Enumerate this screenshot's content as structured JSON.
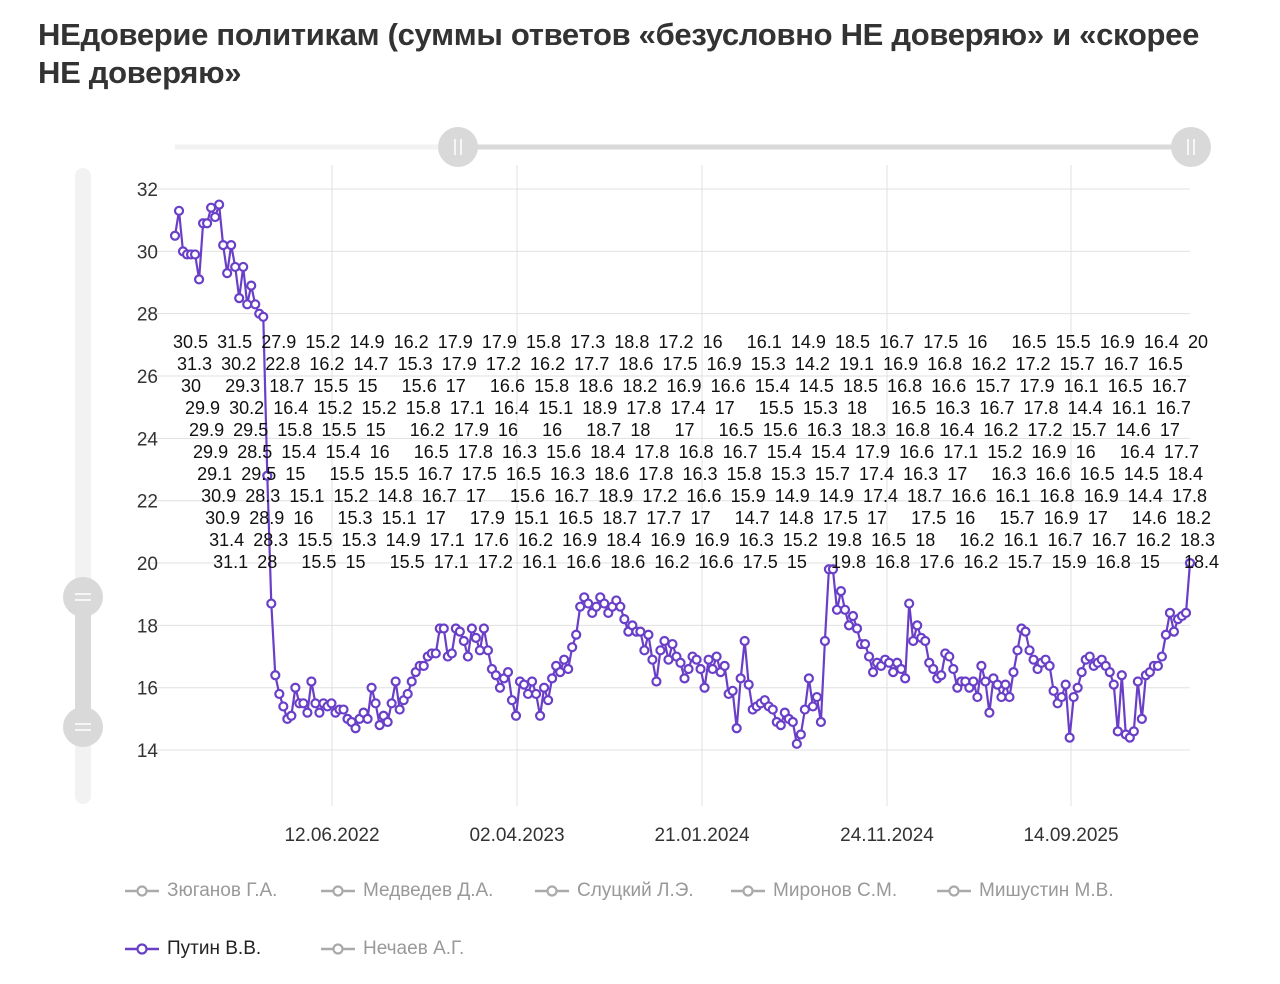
{
  "title": "НЕдоверие политикам (суммы ответов «безусловно НЕ доверяю» и «скорее НЕ доверяю»",
  "colors": {
    "series": "#6a3fc8",
    "inactive": "#aaaaaa",
    "grid": "#e0e0e0",
    "slider": "#d9d9d9"
  },
  "legend": [
    {
      "label": "Зюганов Г.А.",
      "active": false
    },
    {
      "label": "Медведев Д.А.",
      "active": false
    },
    {
      "label": "Слуцкий Л.Э.",
      "active": false
    },
    {
      "label": "Миронов С.М.",
      "active": false
    },
    {
      "label": "Мишустин М.В.",
      "active": false
    },
    {
      "label": "Путин В.В.",
      "active": true
    },
    {
      "label": "Нечаев А.Г.",
      "active": false
    }
  ],
  "chart_data": {
    "type": "line",
    "series": [
      {
        "name": "Путин В.В.",
        "values": [
          30.5,
          31.3,
          30.0,
          29.9,
          29.9,
          29.9,
          29.1,
          30.9,
          30.9,
          31.4,
          31.1,
          31.5,
          30.2,
          29.3,
          30.2,
          29.5,
          28.5,
          29.5,
          28.3,
          28.9,
          28.3,
          28.0,
          27.9,
          22.8,
          18.7,
          16.4,
          15.8,
          15.4,
          15.0,
          15.1,
          16.0,
          15.5,
          15.5,
          15.2,
          16.2,
          15.5,
          15.2,
          15.5,
          15.4,
          15.5,
          15.2,
          15.3,
          15.3,
          15.0,
          14.9,
          14.7,
          15.0,
          15.2,
          15.0,
          16.0,
          15.5,
          14.8,
          15.1,
          14.9,
          15.5,
          16.2,
          15.3,
          15.6,
          15.8,
          16.2,
          16.5,
          16.7,
          16.7,
          17.0,
          17.1,
          17.1,
          17.9,
          17.9,
          17.0,
          17.1,
          17.9,
          17.8,
          17.5,
          17.0,
          17.9,
          17.6,
          17.2,
          17.9,
          17.2,
          16.6,
          16.4,
          16.0,
          16.3,
          16.5,
          15.6,
          15.1,
          16.2,
          16.1,
          15.8,
          16.2,
          15.8,
          15.1,
          16.0,
          15.6,
          16.3,
          16.7,
          16.5,
          16.9,
          16.6,
          17.3,
          17.7,
          18.6,
          18.9,
          18.7,
          18.4,
          18.6,
          18.9,
          18.7,
          18.4,
          18.6,
          18.8,
          18.6,
          18.2,
          17.8,
          18.0,
          17.8,
          17.8,
          17.2,
          17.7,
          16.9,
          16.2,
          17.2,
          17.5,
          16.9,
          17.4,
          17.0,
          16.8,
          16.3,
          16.6,
          17.0,
          16.9,
          16.6,
          16.0,
          16.9,
          16.6,
          17.0,
          16.5,
          16.7,
          15.8,
          15.9,
          14.7,
          16.3,
          17.5,
          16.1,
          15.3,
          15.4,
          15.5,
          15.6,
          15.4,
          15.3,
          14.9,
          14.8,
          15.2,
          15.0,
          14.9,
          14.2,
          14.5,
          15.3,
          16.3,
          15.4,
          15.7,
          14.9,
          17.5,
          19.8,
          19.8,
          18.5,
          19.1,
          18.5,
          18.0,
          18.3,
          17.9,
          17.4,
          17.4,
          17.0,
          16.5,
          16.8,
          16.7,
          16.9,
          16.8,
          16.5,
          16.8,
          16.6,
          16.3,
          18.7,
          17.5,
          18.0,
          17.6,
          17.5,
          16.8,
          16.6,
          16.3,
          16.4,
          17.1,
          17.0,
          16.6,
          16.0,
          16.2,
          16.2,
          16.0,
          16.2,
          15.7,
          16.7,
          16.2,
          15.2,
          16.3,
          16.1,
          15.7,
          16.1,
          15.7,
          16.5,
          17.2,
          17.9,
          17.8,
          17.2,
          16.9,
          16.6,
          16.8,
          16.9,
          16.7,
          15.9,
          15.5,
          15.7,
          16.1,
          14.4,
          15.7,
          16.0,
          16.5,
          16.9,
          17.0,
          16.7,
          16.8,
          16.9,
          16.7,
          16.5,
          16.1,
          14.6,
          16.4,
          14.5,
          14.4,
          14.6,
          16.2,
          15.0,
          16.4,
          16.5,
          16.7,
          16.7,
          17.0,
          17.7,
          18.4,
          17.8,
          18.2,
          18.3,
          18.4,
          20.0
        ]
      }
    ],
    "x_tick_labels": [
      "12.06.2022",
      "02.04.2023",
      "21.01.2024",
      "24.11.2024",
      "14.09.2025"
    ],
    "y_ticks": [
      32,
      30,
      28,
      26,
      24,
      22,
      20,
      18,
      16,
      14
    ],
    "ylim": [
      12.5,
      32
    ],
    "grid": true,
    "data_labels": true,
    "markers": "hollow-circle",
    "legend_position": "bottom"
  }
}
